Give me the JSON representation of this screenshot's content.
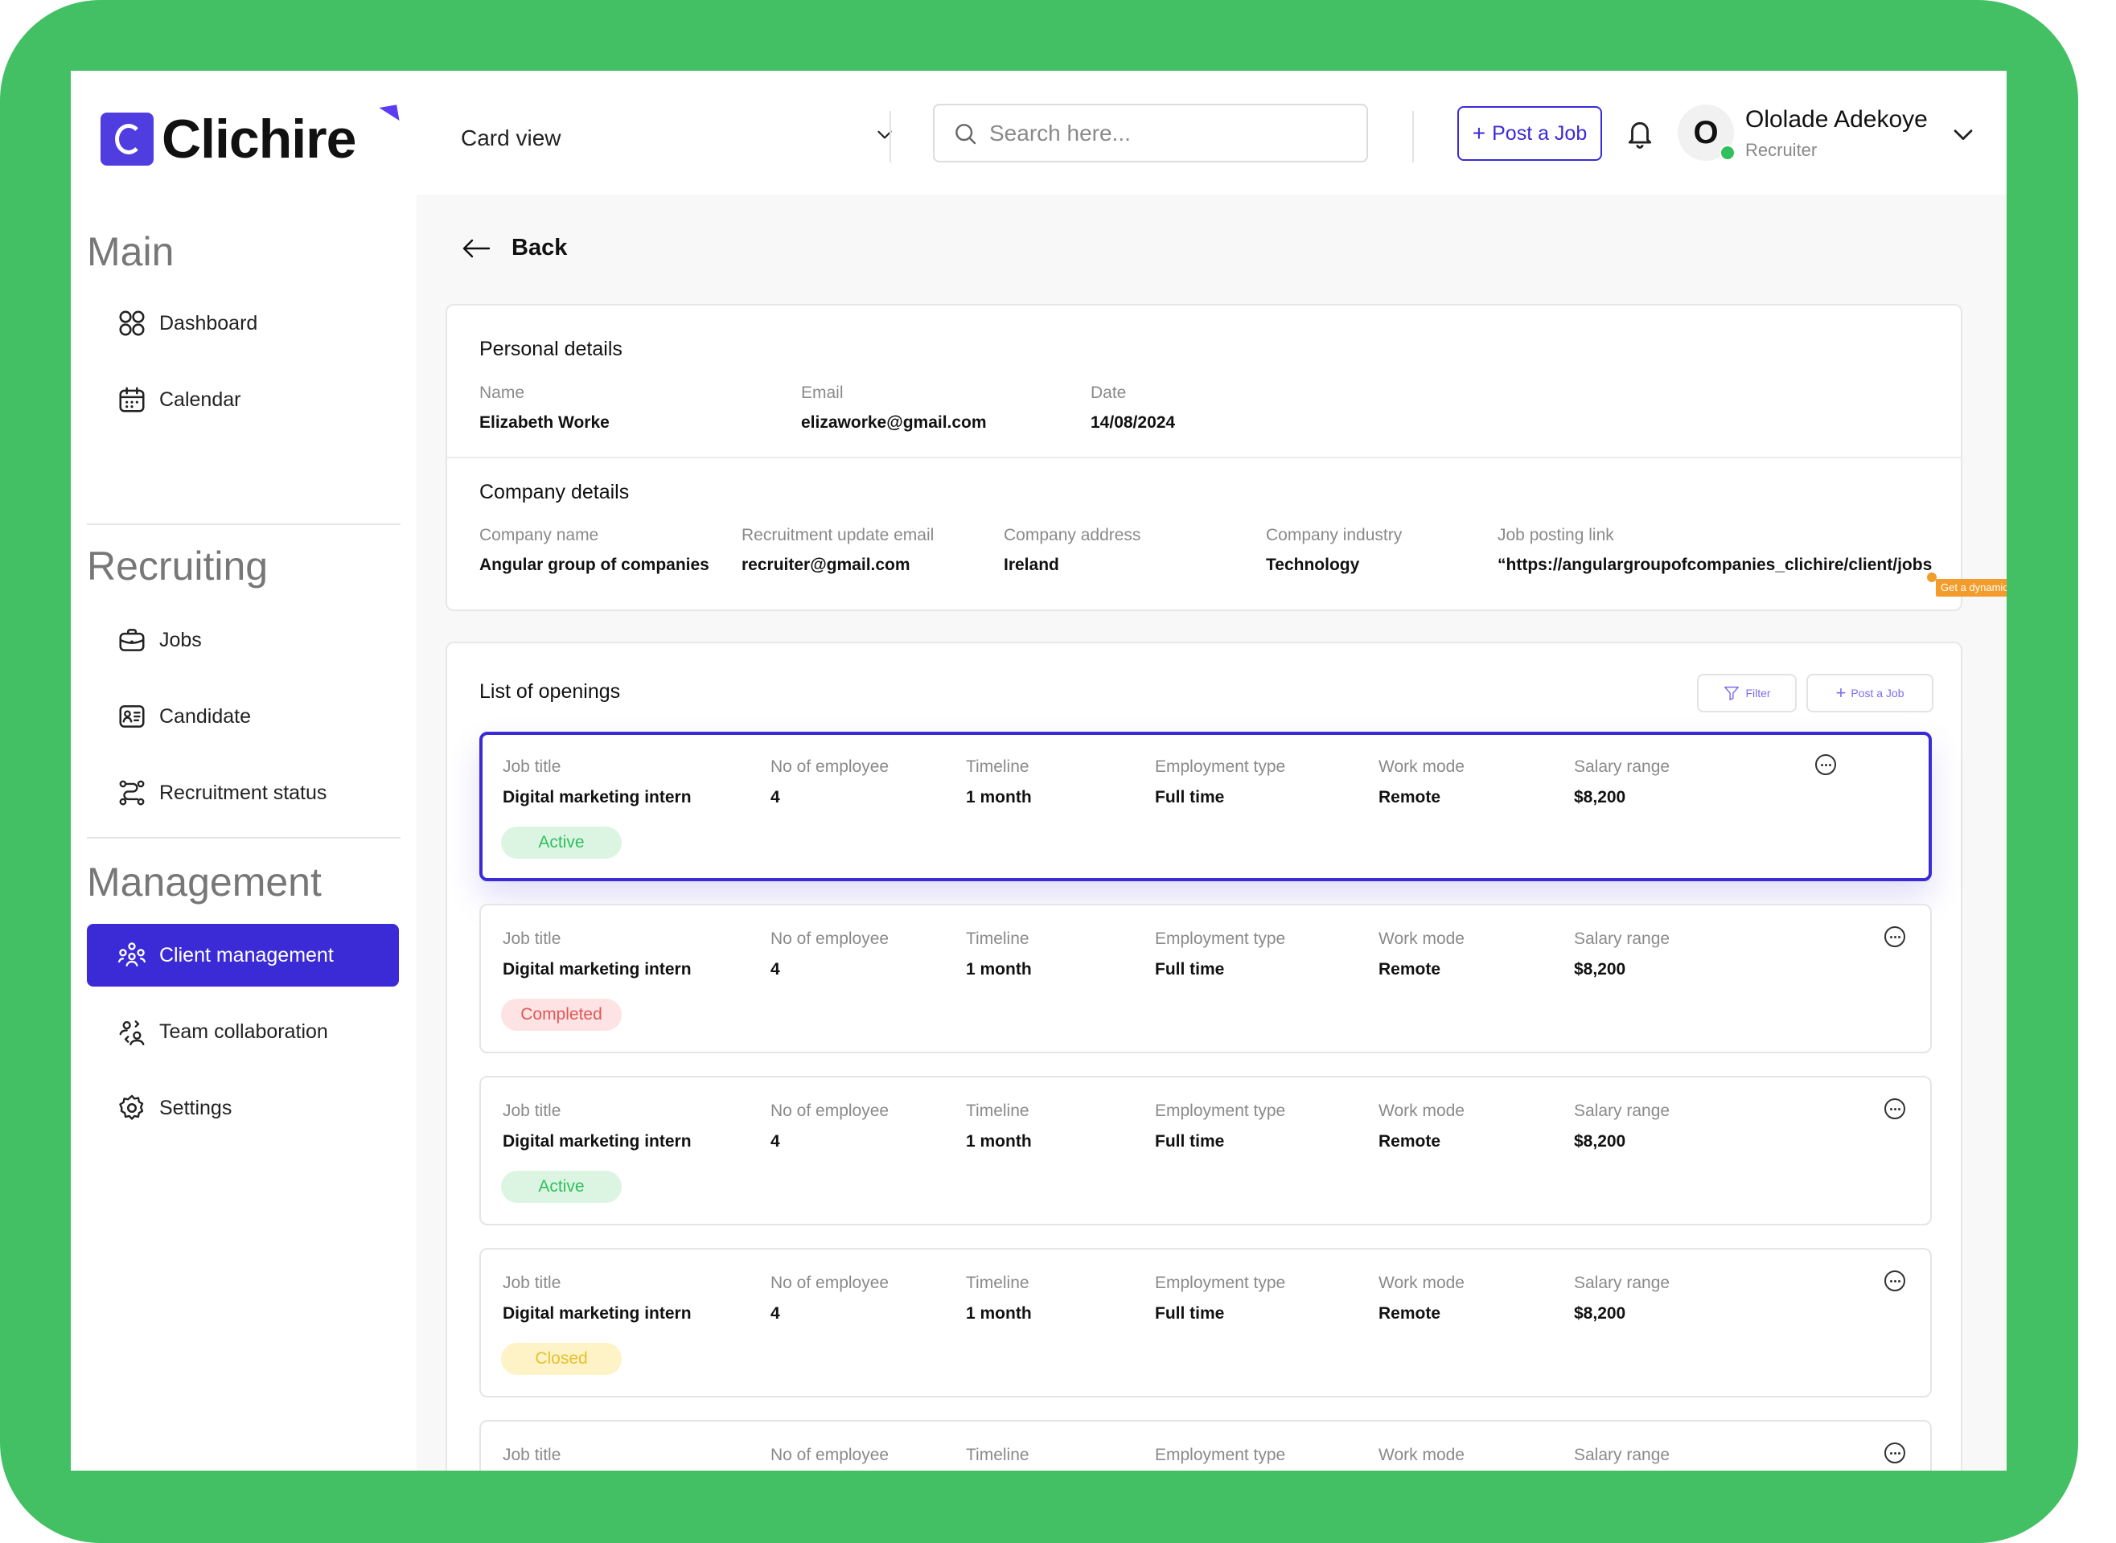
{
  "brand": {
    "name": "Clichire",
    "frame_color": "#43c063",
    "accent": "#3b2bd6"
  },
  "header": {
    "view_select": "Card view",
    "search_placeholder": "Search here...",
    "post_job_label": "Post a Job",
    "user": {
      "initial": "O",
      "name": "Ololade Adekoye",
      "role": "Recruiter"
    }
  },
  "sidebar": {
    "sections": [
      {
        "title": "Main",
        "items": [
          {
            "label": "Dashboard",
            "icon": "dashboard-icon"
          },
          {
            "label": "Calendar",
            "icon": "calendar-icon"
          }
        ]
      },
      {
        "title": "Recruiting",
        "items": [
          {
            "label": "Jobs",
            "icon": "briefcase-icon"
          },
          {
            "label": "Candidate",
            "icon": "id-card-icon"
          },
          {
            "label": "Recruitment status",
            "icon": "route-icon"
          }
        ]
      },
      {
        "title": "Management",
        "items": [
          {
            "label": "Client management",
            "icon": "users-group-icon",
            "active": true
          },
          {
            "label": "Team collaboration",
            "icon": "team-icon"
          },
          {
            "label": "Settings",
            "icon": "gear-icon"
          }
        ]
      }
    ]
  },
  "main": {
    "back_label": "Back",
    "personal": {
      "title": "Personal details",
      "fields": [
        {
          "label": "Name",
          "value": "Elizabeth Worke"
        },
        {
          "label": "Email",
          "value": "elizaworke@gmail.com"
        },
        {
          "label": "Date",
          "value": "14/08/2024"
        }
      ]
    },
    "company": {
      "title": "Company details",
      "fields": [
        {
          "label": "Company name",
          "value": "Angular group of companies"
        },
        {
          "label": "Recruitment update email",
          "value": "recruiter@gmail.com"
        },
        {
          "label": "Company address",
          "value": "Ireland"
        },
        {
          "label": "Company industry",
          "value": "Technology"
        },
        {
          "label": "Job posting link",
          "value": "“https://angulargroupofcompanies_clichire/client/jobs"
        }
      ],
      "tooltip": "Get a dynamic job posting link for every client"
    },
    "openings": {
      "title": "List of openings",
      "filter_label": "Filter",
      "post_job_label": "Post a Job",
      "columns": [
        "Job title",
        "No of employee",
        "Timeline",
        "Employment type",
        "Work mode",
        "Salary range"
      ],
      "jobs": [
        {
          "values": [
            "Digital marketing intern",
            "4",
            "1 month",
            "Full time",
            "Remote",
            "$8,200"
          ],
          "status": "Active",
          "selected": true
        },
        {
          "values": [
            "Digital marketing intern",
            "4",
            "1 month",
            "Full time",
            "Remote",
            "$8,200"
          ],
          "status": "Completed"
        },
        {
          "values": [
            "Digital marketing intern",
            "4",
            "1 month",
            "Full time",
            "Remote",
            "$8,200"
          ],
          "status": "Active"
        },
        {
          "values": [
            "Digital marketing intern",
            "4",
            "1 month",
            "Full time",
            "Remote",
            "$8,200"
          ],
          "status": "Closed"
        },
        {
          "values": [],
          "status": ""
        }
      ],
      "status_colors": {
        "Active": {
          "bg": "#dcf5e3",
          "fg": "#2fbf5c"
        },
        "Completed": {
          "bg": "#fde3e3",
          "fg": "#e35656"
        },
        "Closed": {
          "bg": "#fdf3c6",
          "fg": "#e6c12e"
        }
      }
    }
  }
}
